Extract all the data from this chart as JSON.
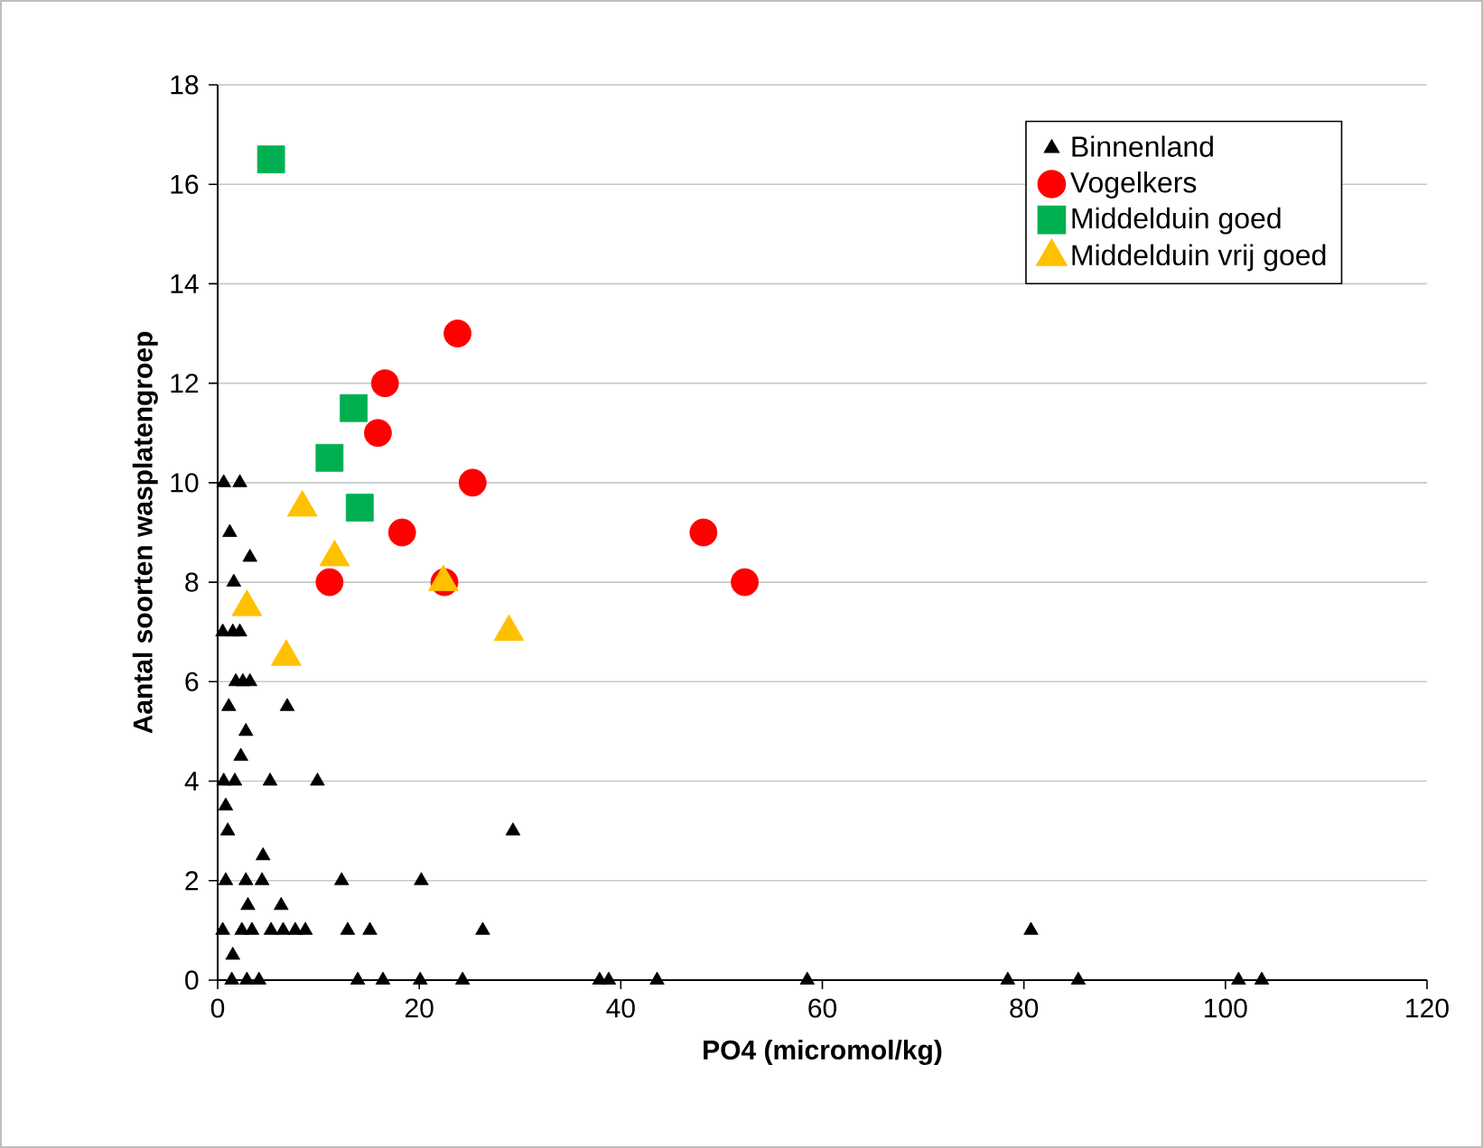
{
  "chart_data": {
    "type": "scatter",
    "xlabel": "PO4 (micromol/kg)",
    "ylabel": "Aantal soorten wasplatengroep",
    "xlim": [
      0,
      120
    ],
    "ylim": [
      0,
      18
    ],
    "xticks": [
      0,
      20,
      40,
      60,
      80,
      100,
      120
    ],
    "yticks": [
      0,
      2,
      4,
      6,
      8,
      10,
      12,
      14,
      16,
      18
    ],
    "grid": "y",
    "legend": "top right",
    "series": [
      {
        "name": "Binnenland",
        "color": "#000000",
        "marker": "triangle",
        "x": [
          0.6,
          2.2,
          1.2,
          3.2,
          1.6,
          0.5,
          1.5,
          2.2,
          1.8,
          2.5,
          3.2,
          1.1,
          6.9,
          2.8,
          2.3,
          0.6,
          1.7,
          5.2,
          9.9,
          0.8,
          1.0,
          29.3,
          4.5,
          0.8,
          2.8,
          4.4,
          12.3,
          20.2,
          3.0,
          6.3,
          0.5,
          2.4,
          3.4,
          5.3,
          6.5,
          7.7,
          8.7,
          12.9,
          15.1,
          26.3,
          80.7,
          1.5,
          1.4,
          2.9,
          4.1,
          13.9,
          16.4,
          20.1,
          24.3,
          37.9,
          38.8,
          43.6,
          58.5,
          78.4,
          85.4,
          101.3,
          103.6
        ],
        "values": [
          10,
          10,
          9,
          8.5,
          8,
          7,
          7,
          7,
          6,
          6,
          6,
          5.5,
          5.5,
          5,
          4.5,
          4,
          4,
          4,
          4,
          3.5,
          3,
          3,
          2.5,
          2,
          2,
          2,
          2,
          2,
          1.5,
          1.5,
          1,
          1,
          1,
          1,
          1,
          1,
          1,
          1,
          1,
          1,
          1,
          0.5,
          0,
          0,
          0,
          0,
          0,
          0,
          0,
          0,
          0,
          0,
          0,
          0,
          0,
          0,
          0
        ]
      },
      {
        "name": "Vogelkers",
        "color": "#ff0000",
        "marker": "circle",
        "x": [
          23.8,
          16.6,
          15.9,
          25.3,
          18.3,
          48.2,
          11.1,
          22.5,
          52.3
        ],
        "values": [
          13,
          12,
          11,
          10,
          9,
          9,
          8,
          8,
          8
        ]
      },
      {
        "name": "Middelduin goed",
        "color": "#00b050",
        "marker": "square",
        "x": [
          5.3,
          13.5,
          11.1,
          14.1
        ],
        "values": [
          16.5,
          11.5,
          10.5,
          9.5
        ]
      },
      {
        "name": "Middelduin vrij goed",
        "color": "#ffc000",
        "marker": "triangle",
        "x": [
          8.4,
          11.6,
          2.9,
          6.8,
          22.4,
          28.9
        ],
        "values": [
          9.5,
          8.5,
          7.5,
          6.5,
          8,
          7
        ]
      }
    ]
  }
}
